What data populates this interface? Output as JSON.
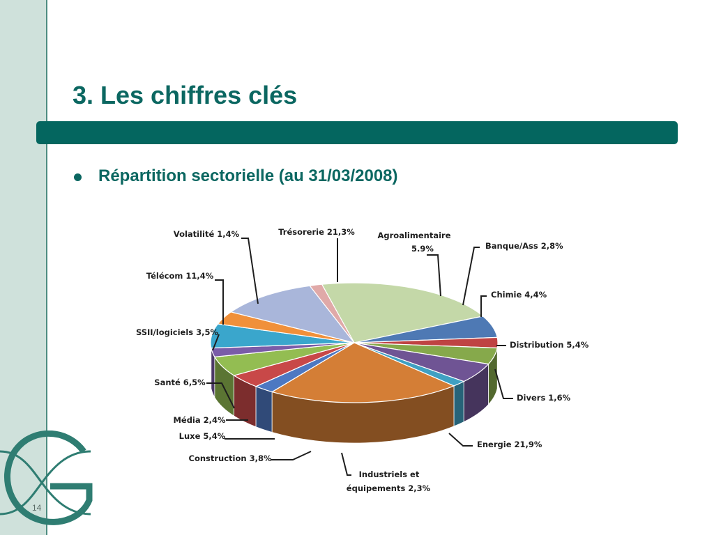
{
  "slide": {
    "title": "3. Les chiffres clés",
    "subtitle": "Répartition sectorielle (au 31/03/2008)",
    "page_number": "14"
  },
  "chart_data": {
    "type": "pie",
    "title": "",
    "slices": [
      {
        "label": "Trésorerie 21,3%",
        "value": 21.3,
        "color": "#c4d8a8"
      },
      {
        "label": "Agroalimentaire 5.9%",
        "value": 5.9,
        "color": "#4e79b4"
      },
      {
        "label": "Banque/Ass 2,8%",
        "value": 2.8,
        "color": "#bf4343"
      },
      {
        "label": "Chimie 4,4%",
        "value": 4.4,
        "color": "#86a94b"
      },
      {
        "label": "Distribution 5,4%",
        "value": 5.4,
        "color": "#6f5494"
      },
      {
        "label": "Divers 1,6%",
        "value": 1.6,
        "color": "#3fa0c2"
      },
      {
        "label": "Energie 21,9%",
        "value": 21.9,
        "color": "#d47e36"
      },
      {
        "label": "Industriels et équipements 2,3%",
        "value": 2.3,
        "color": "#4d78c2"
      },
      {
        "label": "Construction 3,8%",
        "value": 3.8,
        "color": "#c84848"
      },
      {
        "label": "Luxe 5,4%",
        "value": 5.4,
        "color": "#93bd52"
      },
      {
        "label": "Média 2,4%",
        "value": 2.4,
        "color": "#7a5ca8"
      },
      {
        "label": "Santé 6,5%",
        "value": 6.5,
        "color": "#3aa6cc"
      },
      {
        "label": "SSII/logiciels 3,5%",
        "value": 3.5,
        "color": "#f0903a"
      },
      {
        "label": "Télécom 11,4%",
        "value": 11.4,
        "color": "#a9b6da"
      },
      {
        "label": "Volatilité 1,4%",
        "value": 1.4,
        "color": "#e0a9a8"
      }
    ]
  }
}
